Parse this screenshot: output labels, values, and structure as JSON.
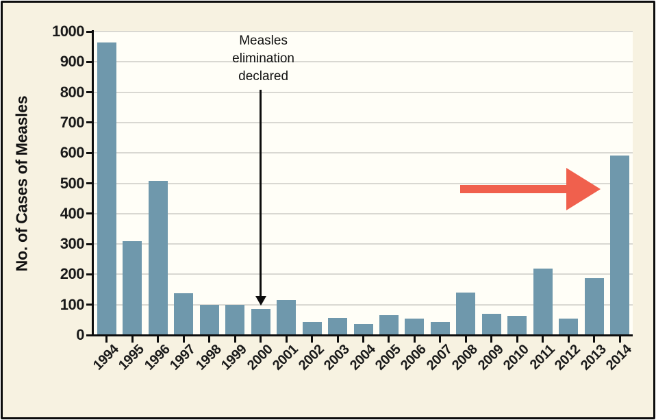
{
  "figure": {
    "ylabel": "No. of Cases of Measles"
  },
  "chart_data": {
    "type": "bar",
    "title": "",
    "xlabel": "",
    "ylabel": "No. of Cases of Measles",
    "categories": [
      "1994",
      "1995",
      "1996",
      "1997",
      "1998",
      "1999",
      "2000",
      "2001",
      "2002",
      "2003",
      "2004",
      "2005",
      "2006",
      "2007",
      "2008",
      "2009",
      "2010",
      "2011",
      "2012",
      "2013",
      "2014"
    ],
    "values": [
      963,
      309,
      508,
      138,
      100,
      100,
      86,
      116,
      44,
      56,
      37,
      66,
      55,
      43,
      140,
      71,
      63,
      220,
      55,
      187,
      592
    ],
    "ylim": [
      0,
      1000
    ],
    "ytick_step": 100,
    "grid": true,
    "legend": "none",
    "bar_color": "#6f98ac",
    "plot_background": "#fffef7",
    "outer_background": "#f7f2e1",
    "grid_color": "#d9d8d2",
    "axis_color": "#0d0d0d",
    "annotations": [
      {
        "id": "elimination-declared",
        "text_lines": [
          "Measles",
          "elimination",
          "declared"
        ],
        "target_category": "2000",
        "style": "down-arrow",
        "color": "#0d0d0d"
      },
      {
        "id": "2014-highlight",
        "style": "right-arrow",
        "target_category": "2014",
        "y_value": 480,
        "color": "#f0604d"
      }
    ]
  }
}
